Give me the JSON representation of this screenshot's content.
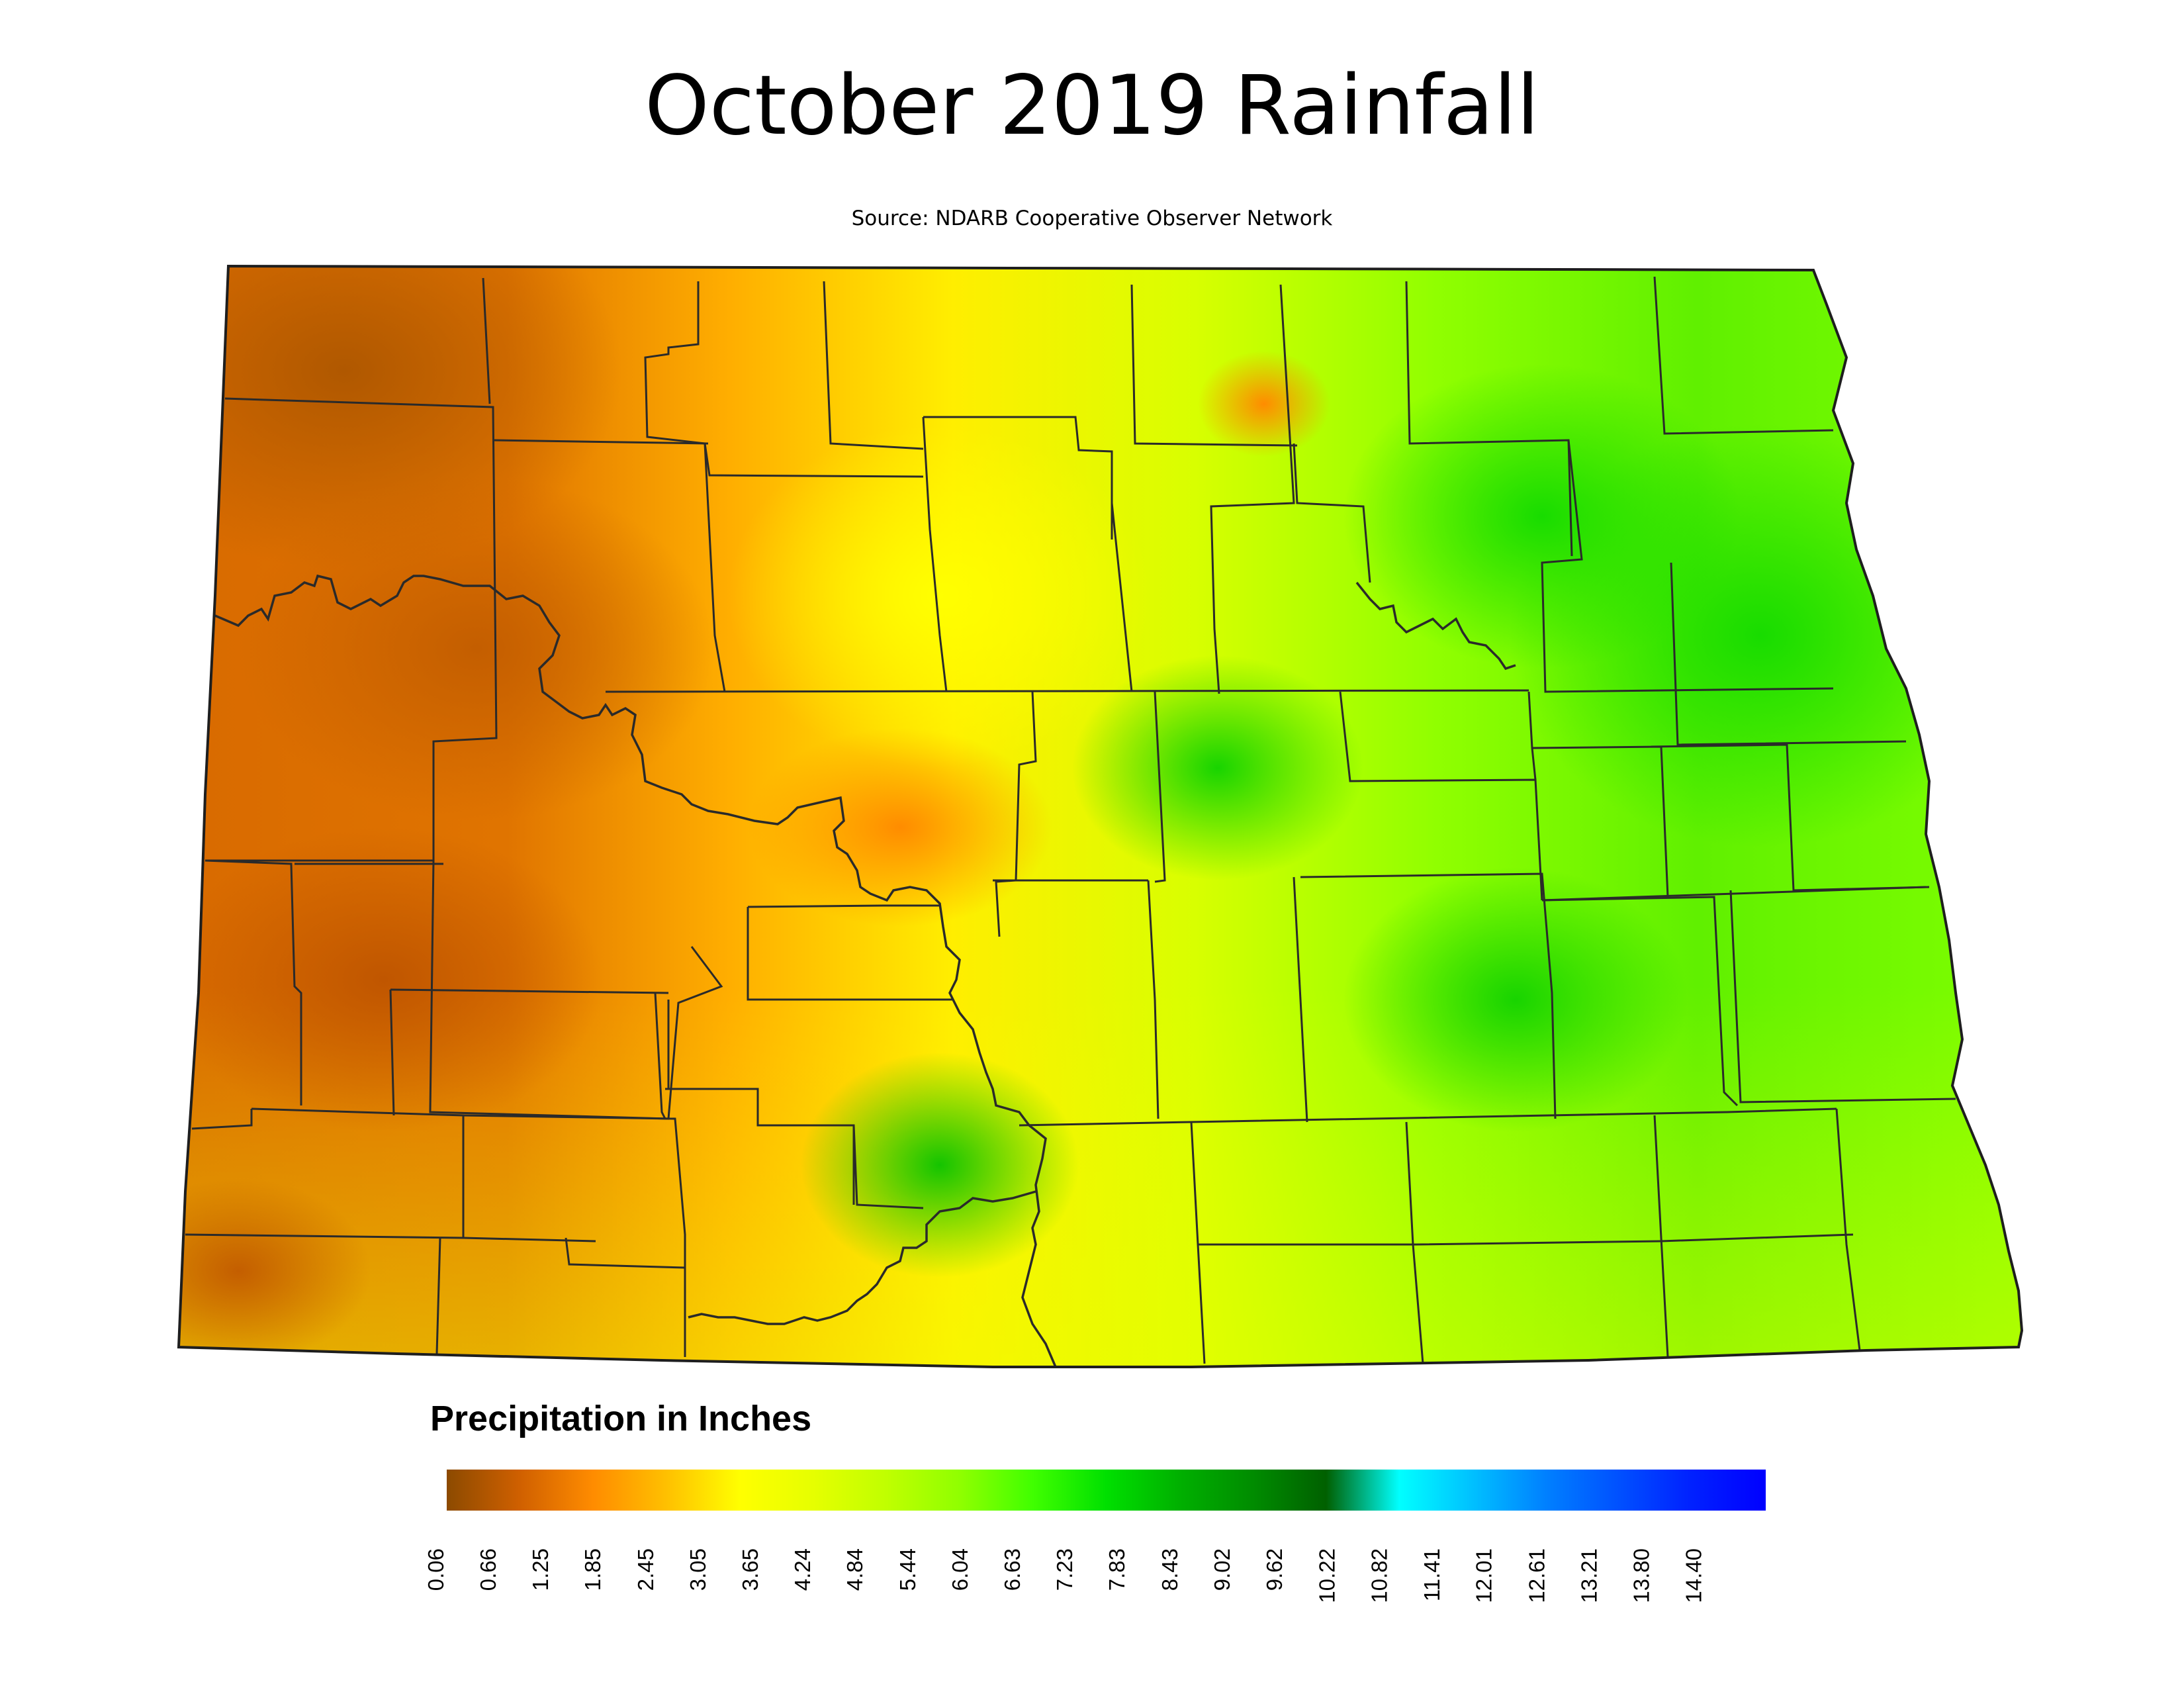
{
  "title": "October 2019 Rainfall",
  "subtitle": "Source: NDARB Cooperative Observer Network",
  "legend": {
    "title": "Precipitation in Inches",
    "ticks": [
      "0.06",
      "0.66",
      "1.25",
      "1.85",
      "2.45",
      "3.05",
      "3.65",
      "4.24",
      "4.84",
      "5.44",
      "6.04",
      "6.63",
      "7.23",
      "7.83",
      "8.43",
      "9.02",
      "9.62",
      "10.22",
      "10.82",
      "11.41",
      "12.01",
      "12.61",
      "13.21",
      "13.80",
      "14.40"
    ],
    "colors": [
      "#8c4a00",
      "#d06000",
      "#ff8c00",
      "#ffc000",
      "#ffff00",
      "#e6ff00",
      "#c0ff00",
      "#90ff00",
      "#40ff00",
      "#00e000",
      "#00b000",
      "#008c00",
      "#006000",
      "#00ffff",
      "#00c0ff",
      "#0080ff",
      "#0050ff",
      "#0020ff",
      "#0000ff"
    ]
  },
  "map": {
    "region": "North Dakota",
    "base_color": "#b8ff00",
    "anomalies": [
      {
        "label": "northwest dry area",
        "color": "#b85a00",
        "level_in": 0.7
      },
      {
        "label": "western dry area",
        "color": "#d46a00",
        "level_in": 1.0
      },
      {
        "label": "southwest dry area",
        "color": "#c85a00",
        "level_in": 0.9
      },
      {
        "label": "central dry spot",
        "color": "#ff9000",
        "level_in": 1.6
      },
      {
        "label": "northeast wet area",
        "color": "#20e000",
        "level_in": 5.6
      },
      {
        "label": "east-central wet area",
        "color": "#20d800",
        "level_in": 5.7
      },
      {
        "label": "south-central wet spot",
        "color": "#20c800",
        "level_in": 5.8
      }
    ]
  }
}
